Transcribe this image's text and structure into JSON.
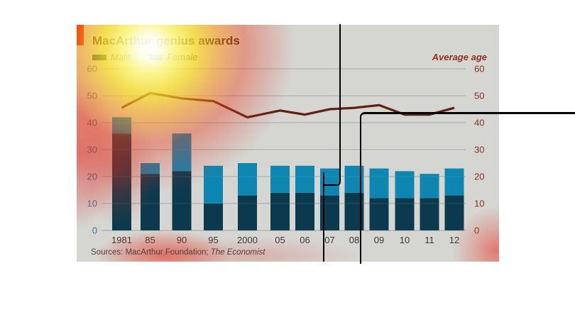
{
  "chart": {
    "title": "MacArthur genius awards",
    "legend": {
      "items": [
        {
          "label": "Male",
          "color": "#0b3a4e"
        },
        {
          "label": "Female",
          "color": "#0d87b2"
        }
      ]
    },
    "right_axis_title": "Average age",
    "source_prefix": "Sources: MacArthur Foundation; ",
    "source_credit": "The Economist",
    "colors": {
      "male": "#0b3a4e",
      "female": "#0d87b2",
      "line": "#5e2110",
      "left_axis": "#35789a",
      "right_axis": "#8c3221",
      "grid": "#a7a8a5",
      "background": "#d5d5d2",
      "tab": "#e3120b",
      "xlabel": "#3e3a37"
    }
  },
  "chart_data": {
    "type": "bar",
    "title": "MacArthur genius awards",
    "categories": [
      "1981",
      "85",
      "90",
      "95",
      "2000",
      "05",
      "06",
      "07",
      "08",
      "09",
      "10",
      "11",
      "12"
    ],
    "series": [
      {
        "name": "Male",
        "type": "bar",
        "stack": "awards",
        "axis": "left",
        "values": [
          36,
          21,
          22,
          10,
          13,
          14,
          14,
          13,
          14,
          12,
          12,
          12,
          13
        ]
      },
      {
        "name": "Female",
        "type": "bar",
        "stack": "awards",
        "axis": "left",
        "values": [
          6,
          4,
          14,
          14,
          12,
          10,
          10,
          10,
          10,
          11,
          10,
          9,
          10
        ]
      },
      {
        "name": "Average age",
        "type": "line",
        "axis": "right",
        "values": [
          45.5,
          51,
          49,
          48,
          42,
          44.5,
          43,
          45,
          45.5,
          46.5,
          43,
          43,
          45.5
        ]
      }
    ],
    "ylim": [
      0,
      60
    ],
    "yticks": [
      0,
      10,
      20,
      30,
      40,
      50,
      60
    ],
    "ylim_right": [
      0,
      60
    ],
    "grid": true,
    "legend_position": "top-left",
    "right_axis_label": "Average age"
  }
}
